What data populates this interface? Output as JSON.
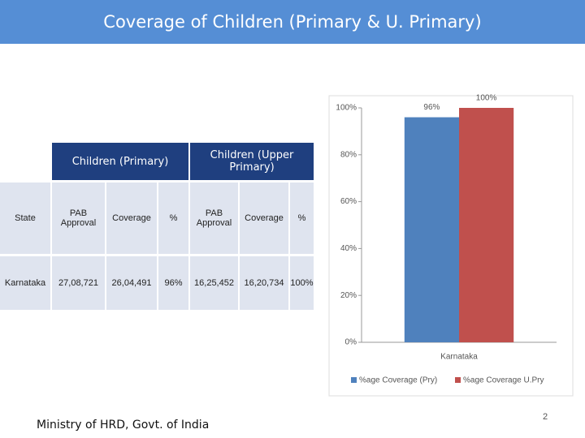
{
  "header": {
    "title": "Coverage of Children (Primary & U. Primary)"
  },
  "table": {
    "group_headers": [
      "Children (Primary)",
      "Children (Upper Primary)"
    ],
    "columns": [
      "State",
      "PAB Approval",
      "Coverage",
      "%",
      "PAB Approval",
      "Coverage",
      "%"
    ],
    "rows": [
      [
        "Karnataka",
        "27,08,721",
        "26,04,491",
        "96%",
        "16,25,452",
        "16,20,734",
        "100%"
      ]
    ]
  },
  "chart_data": {
    "type": "bar",
    "categories": [
      "Karnataka"
    ],
    "series": [
      {
        "name": "%age Coverage (Pry)",
        "color": "#4f81bd",
        "values": [
          96
        ],
        "value_labels": [
          "96%"
        ]
      },
      {
        "name": "%age Coverage U.Pry",
        "color": "#c0504d",
        "values": [
          100
        ],
        "value_labels": [
          "100%"
        ]
      }
    ],
    "ylim": [
      0,
      100
    ],
    "yticks": [
      {
        "value": 0,
        "label": "0%"
      },
      {
        "value": 20,
        "label": "20%"
      },
      {
        "value": 40,
        "label": "40%"
      },
      {
        "value": 60,
        "label": "60%"
      },
      {
        "value": 80,
        "label": "80%"
      },
      {
        "value": 100,
        "label": "100%"
      }
    ],
    "legend": "bottom"
  },
  "footer": {
    "text": "Ministry of HRD, Govt. of India",
    "page_number": "2"
  }
}
